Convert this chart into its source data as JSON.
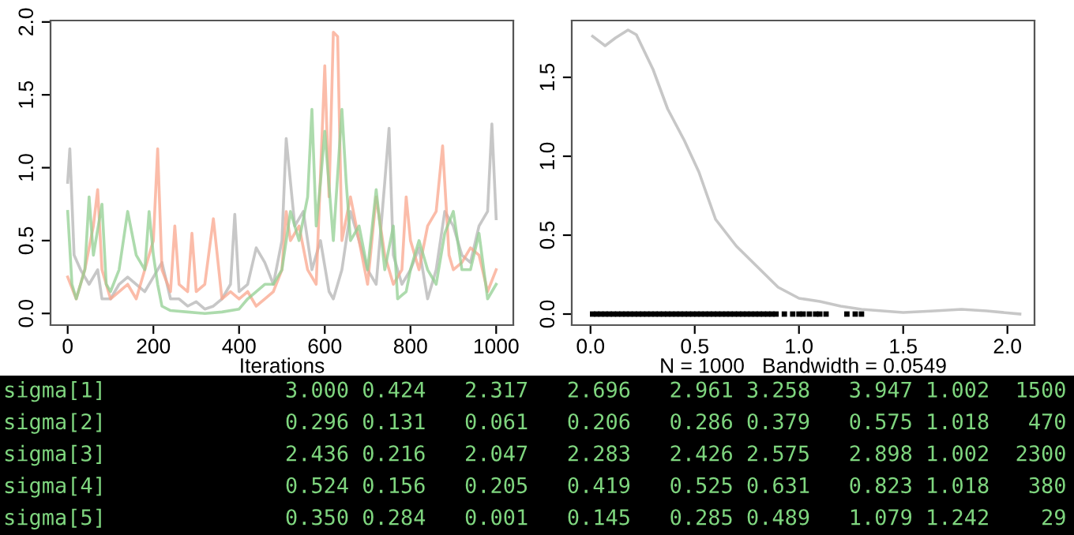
{
  "chart_data": [
    {
      "type": "line",
      "xlabel": "Iterations",
      "xlim": [
        -40,
        1040
      ],
      "ylim": [
        -0.08,
        2.01
      ],
      "xticks": [
        0,
        200,
        400,
        600,
        800,
        1000
      ],
      "yticks": [
        {
          "value": 0,
          "label": "0.0"
        },
        {
          "value": 0.5,
          "label": "0.5"
        },
        {
          "value": 1,
          "label": "1.0"
        },
        {
          "value": 1.5,
          "label": "1.5"
        },
        {
          "value": 2,
          "label": "2.0"
        }
      ],
      "grid": false,
      "legend": false,
      "series": [
        {
          "color": "#b4b4b4",
          "x": [
            0,
            5,
            15,
            30,
            50,
            70,
            80,
            100,
            120,
            140,
            160,
            180,
            200,
            220,
            240,
            260,
            280,
            300,
            320,
            340,
            360,
            380,
            390,
            400,
            420,
            440,
            460,
            480,
            500,
            510,
            530,
            550,
            570,
            590,
            610,
            620,
            640,
            660,
            680,
            700,
            720,
            740,
            750,
            760,
            780,
            800,
            820,
            840,
            860,
            880,
            900,
            920,
            940,
            960,
            980,
            990,
            1000
          ],
          "values": [
            0.9,
            1.13,
            0.4,
            0.3,
            0.2,
            0.3,
            0.1,
            0.1,
            0.2,
            0.25,
            0.2,
            0.15,
            0.25,
            0.35,
            0.1,
            0.1,
            0.05,
            0.08,
            0.03,
            0.05,
            0.1,
            0.2,
            0.68,
            0.15,
            0.2,
            0.45,
            0.35,
            0.2,
            0.5,
            1.2,
            0.6,
            0.7,
            0.3,
            0.5,
            0.15,
            0.1,
            0.3,
            0.7,
            0.5,
            0.3,
            0.2,
            0.9,
            1.27,
            0.4,
            0.2,
            0.3,
            0.45,
            0.1,
            0.3,
            0.7,
            0.6,
            0.4,
            0.35,
            0.6,
            0.7,
            1.3,
            0.65
          ]
        },
        {
          "color": "#f9a58c",
          "x": [
            0,
            20,
            40,
            60,
            70,
            80,
            100,
            120,
            140,
            160,
            180,
            200,
            210,
            220,
            240,
            250,
            260,
            280,
            290,
            300,
            320,
            340,
            360,
            380,
            400,
            420,
            440,
            460,
            480,
            500,
            510,
            520,
            540,
            560,
            580,
            600,
            610,
            620,
            630,
            640,
            660,
            680,
            700,
            720,
            740,
            760,
            780,
            790,
            800,
            820,
            840,
            860,
            875,
            890,
            900,
            920,
            940,
            960,
            980,
            1000
          ],
          "values": [
            0.25,
            0.1,
            0.3,
            0.6,
            0.85,
            0.3,
            0.1,
            0.15,
            0.2,
            0.1,
            0.3,
            0.5,
            1.13,
            0.3,
            0.15,
            0.6,
            0.2,
            0.15,
            0.55,
            0.15,
            0.2,
            0.65,
            0.1,
            0.15,
            0.1,
            0.15,
            0.05,
            0.1,
            0.15,
            0.3,
            0.7,
            0.5,
            0.6,
            0.3,
            0.2,
            1.7,
            0.8,
            1.93,
            1.9,
            0.5,
            0.8,
            0.5,
            0.2,
            0.8,
            0.4,
            0.2,
            0.3,
            0.8,
            0.5,
            0.3,
            0.6,
            0.7,
            1.15,
            0.4,
            0.3,
            0.35,
            0.45,
            0.4,
            0.15,
            0.3
          ]
        },
        {
          "color": "#92cf92",
          "x": [
            0,
            10,
            20,
            40,
            50,
            60,
            80,
            90,
            100,
            120,
            140,
            160,
            180,
            190,
            200,
            210,
            220,
            240,
            280,
            320,
            360,
            400,
            420,
            440,
            460,
            480,
            500,
            520,
            540,
            560,
            570,
            580,
            590,
            600,
            620,
            640,
            650,
            660,
            680,
            700,
            720,
            740,
            760,
            770,
            790,
            800,
            820,
            840,
            860,
            880,
            900,
            920,
            940,
            960,
            980,
            1000
          ],
          "values": [
            0.7,
            0.2,
            0.1,
            0.3,
            0.8,
            0.4,
            0.75,
            0.2,
            0.15,
            0.3,
            0.7,
            0.4,
            0.3,
            0.7,
            0.4,
            0.2,
            0.05,
            0.02,
            0.01,
            0.0,
            0.01,
            0.03,
            0.1,
            0.15,
            0.2,
            0.2,
            0.3,
            0.7,
            0.5,
            0.8,
            1.4,
            0.6,
            0.9,
            1.25,
            0.5,
            1.4,
            0.9,
            0.5,
            0.6,
            0.3,
            0.85,
            0.3,
            0.6,
            0.1,
            0.15,
            0.3,
            0.5,
            0.3,
            0.2,
            0.55,
            0.7,
            0.3,
            0.3,
            0.55,
            0.1,
            0.2
          ]
        }
      ]
    },
    {
      "type": "line",
      "xlabel": "N = 1000   Bandwidth = 0.0549",
      "xlim": [
        -0.09,
        2.13
      ],
      "ylim": [
        -0.07,
        1.86
      ],
      "xticks": [
        {
          "value": 0,
          "label": "0.0"
        },
        {
          "value": 0.5,
          "label": "0.5"
        },
        {
          "value": 1,
          "label": "1.0"
        },
        {
          "value": 1.5,
          "label": "1.5"
        },
        {
          "value": 2,
          "label": "2.0"
        }
      ],
      "yticks": [
        {
          "value": 0,
          "label": "0.0"
        },
        {
          "value": 0.5,
          "label": "0.5"
        },
        {
          "value": 1,
          "label": "1.0"
        },
        {
          "value": 1.5,
          "label": "1.5"
        }
      ],
      "grid": false,
      "legend": false,
      "series": [
        {
          "color": "#b4b4b4",
          "x": [
            0.01,
            0.07,
            0.12,
            0.18,
            0.22,
            0.3,
            0.37,
            0.45,
            0.52,
            0.6,
            0.7,
            0.8,
            0.9,
            1.0,
            1.1,
            1.2,
            1.3,
            1.5,
            1.65,
            1.78,
            1.9,
            2.06
          ],
          "values": [
            1.76,
            1.7,
            1.75,
            1.8,
            1.77,
            1.55,
            1.3,
            1.1,
            0.9,
            0.6,
            0.43,
            0.3,
            0.17,
            0.1,
            0.08,
            0.05,
            0.03,
            0.01,
            0.02,
            0.03,
            0.02,
            0.0
          ]
        },
        {
          "type": "scatter",
          "color": "#000000",
          "x": [
            0.01,
            0.03,
            0.05,
            0.07,
            0.09,
            0.11,
            0.13,
            0.15,
            0.17,
            0.19,
            0.21,
            0.23,
            0.25,
            0.27,
            0.29,
            0.31,
            0.33,
            0.35,
            0.37,
            0.39,
            0.41,
            0.43,
            0.45,
            0.47,
            0.49,
            0.51,
            0.53,
            0.55,
            0.57,
            0.59,
            0.61,
            0.63,
            0.65,
            0.67,
            0.69,
            0.71,
            0.73,
            0.75,
            0.77,
            0.79,
            0.81,
            0.83,
            0.85,
            0.87,
            0.89,
            0.93,
            0.97,
            1.0,
            1.02,
            1.05,
            1.08,
            1.1,
            1.13,
            1.23,
            1.27,
            1.3
          ],
          "values": [
            0,
            0,
            0,
            0,
            0,
            0,
            0,
            0,
            0,
            0,
            0,
            0,
            0,
            0,
            0,
            0,
            0,
            0,
            0,
            0,
            0,
            0,
            0,
            0,
            0,
            0,
            0,
            0,
            0,
            0,
            0,
            0,
            0,
            0,
            0,
            0,
            0,
            0,
            0,
            0,
            0,
            0,
            0,
            0,
            0,
            0,
            0,
            0,
            0,
            0,
            0,
            0,
            0,
            0,
            0,
            0
          ]
        }
      ]
    },
    {
      "type": "other",
      "annotations": [
        "sigma[1]              3.000 0.424   2.317   2.696   2.961 3.258   3.947 1.002  1500",
        "sigma[2]              0.296 0.131   0.061   0.206   0.286 0.379   0.575 1.018   470",
        "sigma[3]              2.436 0.216   2.047   2.283   2.426 2.575   2.898 1.002  2300",
        "sigma[4]              0.524 0.156   0.205   0.419   0.525 0.631   0.823 1.018   380",
        "sigma[5]              0.350 0.284   0.001   0.145   0.285 0.489   1.079 1.242    29"
      ]
    }
  ]
}
